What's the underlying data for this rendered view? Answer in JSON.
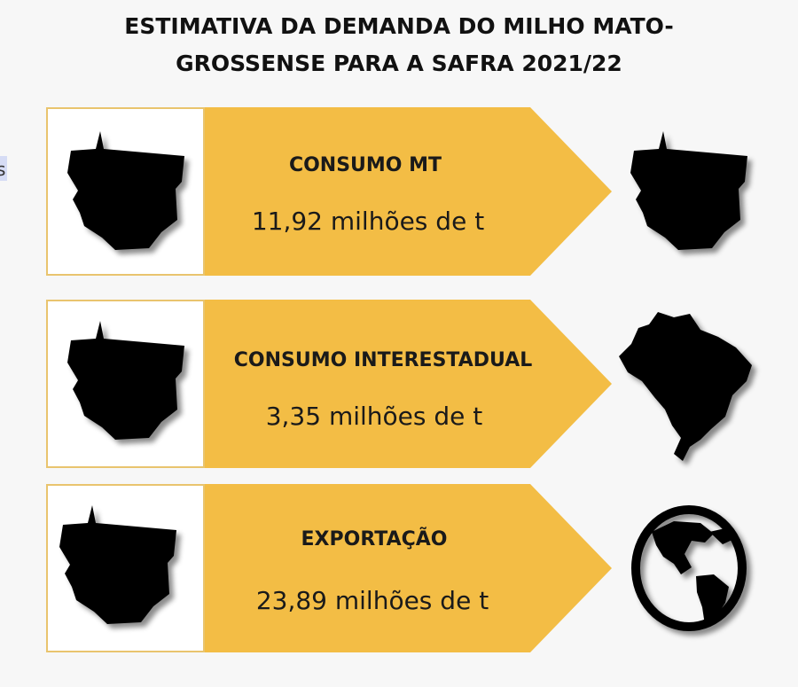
{
  "title": [
    "ESTIMATIVA DA DEMANDA DO MILHO MATO-",
    "GROSSENSE PARA A SAFRA 2021/22"
  ],
  "fragment": "s",
  "rows": [
    {
      "label": "CONSUMO MT",
      "value": "11,92 milhões de t"
    },
    {
      "label": "CONSUMO INTERESTADUAL",
      "value": "3,35 milhões de t"
    },
    {
      "label": "EXPORTAÇÃO",
      "value": "23,89 milhões de t"
    }
  ]
}
